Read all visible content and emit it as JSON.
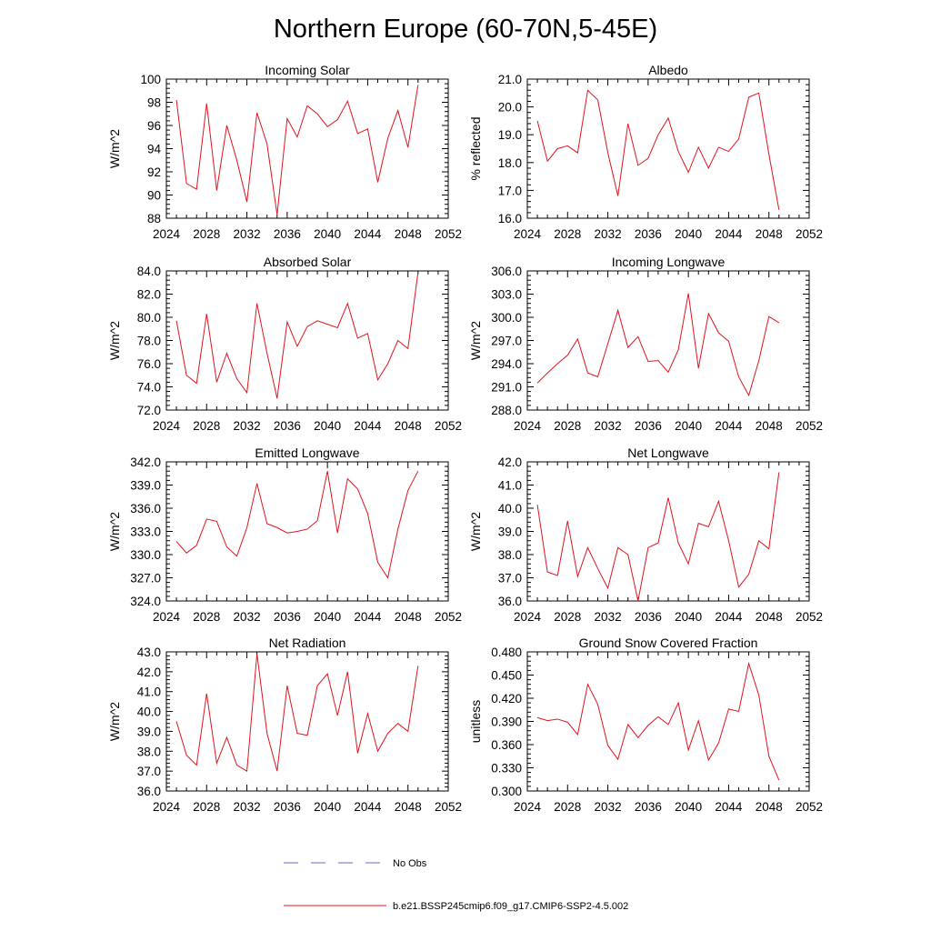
{
  "figure": {
    "title": "Northern Europe (60-70N,5-45E)",
    "legend": [
      {
        "label": "No Obs",
        "color": "#6a6ac8",
        "style": "dashed"
      },
      {
        "label": "b.e21.BSSP245cmip6.f09_g17.CMIP6-SSP2-4.5.002",
        "color": "#e0141e",
        "style": "solid"
      }
    ],
    "line_color": "#e0141e"
  },
  "chart_data": [
    {
      "type": "line",
      "title": "Incoming Solar",
      "xlabel": "",
      "ylabel": "W/m^2",
      "xlim": [
        2024,
        2052
      ],
      "ylim": [
        88,
        100
      ],
      "xticks": [
        2024,
        2028,
        2032,
        2036,
        2040,
        2044,
        2048,
        2052
      ],
      "yticks": [
        88,
        90,
        92,
        94,
        96,
        98,
        100
      ],
      "ytick_labels": [
        "88",
        "90",
        "92",
        "94",
        "96",
        "98",
        "100"
      ],
      "x": [
        2025,
        2026,
        2027,
        2028,
        2029,
        2030,
        2031,
        2032,
        2033,
        2034,
        2035,
        2036,
        2037,
        2038,
        2039,
        2040,
        2041,
        2042,
        2043,
        2044,
        2045,
        2046,
        2047,
        2048,
        2049
      ],
      "values": [
        98.2,
        91.0,
        90.5,
        97.9,
        90.4,
        96.0,
        93.0,
        89.4,
        97.1,
        94.4,
        88.3,
        96.6,
        95.0,
        97.7,
        97.0,
        95.9,
        96.5,
        98.1,
        95.3,
        95.7,
        91.1,
        94.9,
        97.3,
        94.1,
        99.5
      ]
    },
    {
      "type": "line",
      "title": "Albedo",
      "xlabel": "",
      "ylabel": "% reflected",
      "xlim": [
        2024,
        2052
      ],
      "ylim": [
        16.0,
        21.0
      ],
      "xticks": [
        2024,
        2028,
        2032,
        2036,
        2040,
        2044,
        2048,
        2052
      ],
      "yticks": [
        16.0,
        17.0,
        18.0,
        19.0,
        20.0,
        21.0
      ],
      "ytick_labels": [
        "16.0",
        "17.0",
        "18.0",
        "19.0",
        "20.0",
        "21.0"
      ],
      "x": [
        2025,
        2026,
        2027,
        2028,
        2029,
        2030,
        2031,
        2032,
        2033,
        2034,
        2035,
        2036,
        2037,
        2038,
        2039,
        2040,
        2041,
        2042,
        2043,
        2044,
        2045,
        2046,
        2047,
        2048,
        2049
      ],
      "values": [
        19.5,
        18.05,
        18.5,
        18.6,
        18.35,
        20.6,
        20.25,
        18.35,
        16.8,
        19.4,
        17.9,
        18.15,
        19.0,
        19.6,
        18.4,
        17.65,
        18.55,
        17.8,
        18.55,
        18.4,
        18.85,
        20.35,
        20.5,
        18.3,
        16.3
      ]
    },
    {
      "type": "line",
      "title": "Absorbed Solar",
      "xlabel": "",
      "ylabel": "W/m^2",
      "xlim": [
        2024,
        2052
      ],
      "ylim": [
        72.0,
        84.0
      ],
      "xticks": [
        2024,
        2028,
        2032,
        2036,
        2040,
        2044,
        2048,
        2052
      ],
      "yticks": [
        72.0,
        74.0,
        76.0,
        78.0,
        80.0,
        82.0,
        84.0
      ],
      "ytick_labels": [
        "72.0",
        "74.0",
        "76.0",
        "78.0",
        "80.0",
        "82.0",
        "84.0"
      ],
      "x": [
        2025,
        2026,
        2027,
        2028,
        2029,
        2030,
        2031,
        2032,
        2033,
        2034,
        2035,
        2036,
        2037,
        2038,
        2039,
        2040,
        2041,
        2042,
        2043,
        2044,
        2045,
        2046,
        2047,
        2048,
        2049
      ],
      "values": [
        79.7,
        75.0,
        74.3,
        80.3,
        74.4,
        76.9,
        74.7,
        73.5,
        81.2,
        76.9,
        73.0,
        79.6,
        77.5,
        79.2,
        79.7,
        79.4,
        79.1,
        81.2,
        78.2,
        78.6,
        74.6,
        76.0,
        78.0,
        77.3,
        83.9
      ]
    },
    {
      "type": "line",
      "title": "Incoming Longwave",
      "xlabel": "",
      "ylabel": "W/m^2",
      "xlim": [
        2024,
        2052
      ],
      "ylim": [
        288.0,
        306.0
      ],
      "xticks": [
        2024,
        2028,
        2032,
        2036,
        2040,
        2044,
        2048,
        2052
      ],
      "yticks": [
        288.0,
        291.0,
        294.0,
        297.0,
        300.0,
        303.0,
        306.0
      ],
      "ytick_labels": [
        "288.0",
        "291.0",
        "294.0",
        "297.0",
        "300.0",
        "303.0",
        "306.0"
      ],
      "x": [
        2025,
        2026,
        2027,
        2028,
        2029,
        2030,
        2031,
        2032,
        2033,
        2034,
        2035,
        2036,
        2037,
        2038,
        2039,
        2040,
        2041,
        2042,
        2043,
        2044,
        2045,
        2046,
        2047,
        2048,
        2049
      ],
      "values": [
        291.5,
        292.8,
        294.0,
        295.1,
        297.2,
        292.8,
        292.3,
        296.6,
        300.9,
        296.1,
        297.5,
        294.3,
        294.4,
        292.9,
        295.8,
        303.1,
        293.4,
        300.5,
        298.0,
        296.9,
        292.3,
        289.9,
        294.4,
        300.1,
        299.3
      ]
    },
    {
      "type": "line",
      "title": "Emitted Longwave",
      "xlabel": "",
      "ylabel": "W/m^2",
      "xlim": [
        2024,
        2052
      ],
      "ylim": [
        324.0,
        342.0
      ],
      "xticks": [
        2024,
        2028,
        2032,
        2036,
        2040,
        2044,
        2048,
        2052
      ],
      "yticks": [
        324.0,
        327.0,
        330.0,
        333.0,
        336.0,
        339.0,
        342.0
      ],
      "ytick_labels": [
        "324.0",
        "327.0",
        "330.0",
        "333.0",
        "336.0",
        "339.0",
        "342.0"
      ],
      "x": [
        2025,
        2026,
        2027,
        2028,
        2029,
        2030,
        2031,
        2032,
        2033,
        2034,
        2035,
        2036,
        2037,
        2038,
        2039,
        2040,
        2041,
        2042,
        2043,
        2044,
        2045,
        2046,
        2047,
        2048,
        2049
      ],
      "values": [
        331.7,
        330.2,
        331.2,
        334.6,
        334.3,
        331.0,
        329.8,
        333.5,
        339.2,
        334.0,
        333.5,
        332.8,
        333.0,
        333.3,
        334.4,
        340.8,
        332.8,
        339.8,
        338.5,
        335.3,
        329.0,
        327.0,
        333.3,
        338.3,
        340.8
      ]
    },
    {
      "type": "line",
      "title": "Net Longwave",
      "xlabel": "",
      "ylabel": "W/m^2",
      "xlim": [
        2024,
        2052
      ],
      "ylim": [
        36.0,
        42.0
      ],
      "xticks": [
        2024,
        2028,
        2032,
        2036,
        2040,
        2044,
        2048,
        2052
      ],
      "yticks": [
        36.0,
        37.0,
        38.0,
        39.0,
        40.0,
        41.0,
        42.0
      ],
      "ytick_labels": [
        "36.0",
        "37.0",
        "38.0",
        "39.0",
        "40.0",
        "41.0",
        "42.0"
      ],
      "x": [
        2025,
        2026,
        2027,
        2028,
        2029,
        2030,
        2031,
        2032,
        2033,
        2034,
        2035,
        2036,
        2037,
        2038,
        2039,
        2040,
        2041,
        2042,
        2043,
        2044,
        2045,
        2046,
        2047,
        2048,
        2049
      ],
      "values": [
        40.15,
        37.25,
        37.1,
        39.45,
        37.05,
        38.3,
        37.4,
        36.55,
        38.3,
        38.0,
        36.0,
        38.3,
        38.5,
        40.45,
        38.5,
        37.6,
        39.35,
        39.2,
        40.3,
        38.6,
        36.6,
        37.15,
        38.6,
        38.25,
        41.55
      ]
    },
    {
      "type": "line",
      "title": "Net Radiation",
      "xlabel": "",
      "ylabel": "W/m^2",
      "xlim": [
        2024,
        2052
      ],
      "ylim": [
        36.0,
        43.0
      ],
      "xticks": [
        2024,
        2028,
        2032,
        2036,
        2040,
        2044,
        2048,
        2052
      ],
      "yticks": [
        36.0,
        37.0,
        38.0,
        39.0,
        40.0,
        41.0,
        42.0,
        43.0
      ],
      "ytick_labels": [
        "36.0",
        "37.0",
        "38.0",
        "39.0",
        "40.0",
        "41.0",
        "42.0",
        "43.0"
      ],
      "x": [
        2025,
        2026,
        2027,
        2028,
        2029,
        2030,
        2031,
        2032,
        2033,
        2034,
        2035,
        2036,
        2037,
        2038,
        2039,
        2040,
        2041,
        2042,
        2043,
        2044,
        2045,
        2046,
        2047,
        2048,
        2049
      ],
      "values": [
        39.5,
        37.8,
        37.3,
        40.9,
        37.4,
        38.7,
        37.3,
        37.0,
        42.9,
        38.9,
        37.0,
        41.3,
        38.9,
        38.8,
        41.3,
        41.9,
        39.8,
        42.0,
        37.9,
        39.9,
        38.0,
        38.9,
        39.4,
        39.0,
        42.3
      ]
    },
    {
      "type": "line",
      "title": "Ground Snow Covered Fraction",
      "xlabel": "",
      "ylabel": "unitless",
      "xlim": [
        2024,
        2052
      ],
      "ylim": [
        0.3,
        0.48
      ],
      "xticks": [
        2024,
        2028,
        2032,
        2036,
        2040,
        2044,
        2048,
        2052
      ],
      "yticks": [
        0.3,
        0.33,
        0.36,
        0.39,
        0.42,
        0.45,
        0.48
      ],
      "ytick_labels": [
        "0.300",
        "0.330",
        "0.360",
        "0.390",
        "0.420",
        "0.450",
        "0.480"
      ],
      "x": [
        2025,
        2026,
        2027,
        2028,
        2029,
        2030,
        2031,
        2032,
        2033,
        2034,
        2035,
        2036,
        2037,
        2038,
        2039,
        2040,
        2041,
        2042,
        2043,
        2044,
        2045,
        2046,
        2047,
        2048,
        2049
      ],
      "values": [
        0.395,
        0.391,
        0.393,
        0.389,
        0.373,
        0.438,
        0.412,
        0.359,
        0.341,
        0.386,
        0.369,
        0.385,
        0.396,
        0.386,
        0.414,
        0.353,
        0.391,
        0.34,
        0.362,
        0.406,
        0.403,
        0.465,
        0.424,
        0.345,
        0.314
      ]
    }
  ]
}
